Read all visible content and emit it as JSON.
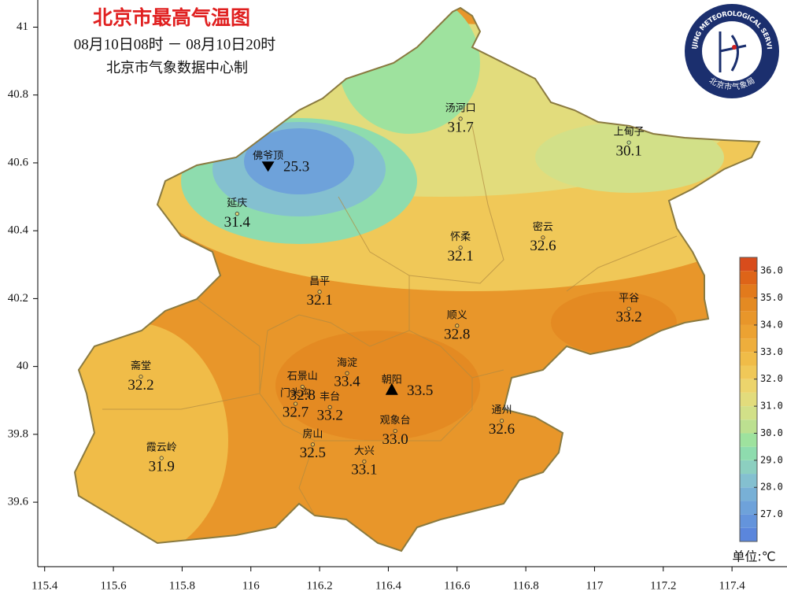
{
  "title": "北京市最高气温图",
  "time_range": "08月10日08时 － 08月10日20时",
  "producer": "北京市气象数据中心制",
  "logo": {
    "top_text": "BEIJING METEOROLOGICAL SERVICE",
    "bottom_text": "北京市气象局"
  },
  "map": {
    "xlim": [
      115.38,
      117.56
    ],
    "ylim": [
      39.41,
      41.08
    ],
    "xticks": [
      115.4,
      115.6,
      115.8,
      116,
      116.2,
      116.4,
      116.6,
      116.8,
      117,
      117.2,
      117.4
    ],
    "yticks": [
      39.6,
      39.8,
      40,
      40.2,
      40.4,
      40.6,
      40.8,
      41
    ],
    "stations": {
      "names": [
        "汤河口",
        "上甸子",
        "佛爷顶",
        "延庆",
        "怀柔",
        "密云",
        "昌平",
        "平谷",
        "顺义",
        "斋堂",
        "海淀",
        "朝阳",
        "石景山",
        "门头沟",
        "丰台",
        "通州",
        "观象台",
        "房山",
        "大兴",
        "霞云岭"
      ],
      "lon": [
        116.61,
        117.1,
        116.05,
        115.96,
        116.61,
        116.85,
        116.2,
        117.1,
        116.6,
        115.68,
        116.28,
        116.41,
        116.15,
        116.13,
        116.23,
        116.73,
        116.42,
        116.18,
        116.33,
        115.74
      ],
      "lat": [
        40.73,
        40.66,
        40.59,
        40.45,
        40.35,
        40.38,
        40.22,
        40.17,
        40.12,
        39.97,
        39.98,
        39.93,
        39.94,
        39.89,
        39.88,
        39.84,
        39.81,
        39.77,
        39.72,
        39.73
      ],
      "values": [
        31.7,
        30.1,
        25.3,
        31.4,
        32.1,
        32.6,
        32.1,
        33.2,
        32.8,
        32.2,
        33.4,
        33.5,
        32.8,
        32.7,
        33.2,
        32.6,
        33.0,
        32.5,
        33.1,
        31.9
      ],
      "value_labels": [
        "31.7",
        "30.1",
        "25.3",
        "31.4",
        "32.1",
        "32.6",
        "32.1",
        "33.2",
        "32.8",
        "32.2",
        "33.4",
        "33.5",
        "32.8",
        "32.7",
        "33.2",
        "32.6",
        "33.0",
        "32.5",
        "33.1",
        "31.9"
      ]
    }
  },
  "colorbar": {
    "lim": [
      26.0,
      36.5
    ],
    "ticks": [
      {
        "value": 27,
        "label": "27.0"
      },
      {
        "value": 28,
        "label": "28.0"
      },
      {
        "value": 29,
        "label": "29.0"
      },
      {
        "value": 30,
        "label": "30.0"
      },
      {
        "value": 31,
        "label": "31.0"
      },
      {
        "value": 32,
        "label": "32.0"
      },
      {
        "value": 33,
        "label": "33.0"
      },
      {
        "value": 34,
        "label": "34.0"
      },
      {
        "value": 35,
        "label": "35.0"
      },
      {
        "value": 36,
        "label": "36.0"
      }
    ],
    "colors": [
      "#5b86dc",
      "#6494dc",
      "#6ea2da",
      "#78b0d6",
      "#84c0d0",
      "#8ccfc0",
      "#8edcae",
      "#9ee29e",
      "#bce090",
      "#d2e088",
      "#e2dc7c",
      "#ecd46c",
      "#f0c858",
      "#f0bc48",
      "#eeae3c",
      "#eca232",
      "#e8962a",
      "#e48a22",
      "#e27a1c",
      "#de6418",
      "#d84c1c"
    ],
    "unit": "单位:℃"
  }
}
